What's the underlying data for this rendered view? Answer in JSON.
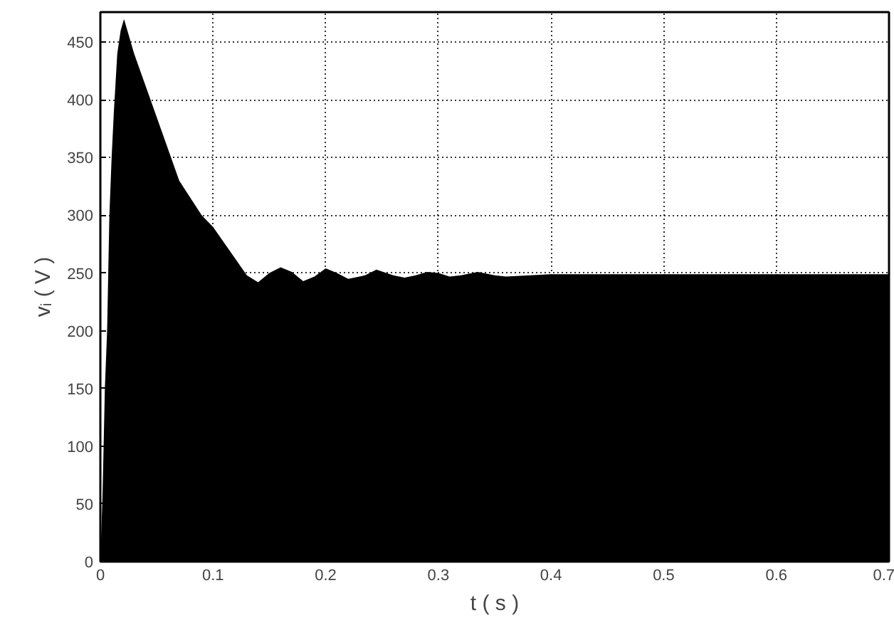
{
  "chart_data": {
    "type": "area",
    "xlabel": "t ( s )",
    "ylabel": "vᵢ ( V )",
    "series": [
      {
        "color": "#000000",
        "x": [
          0,
          0.002,
          0.004,
          0.006,
          0.008,
          0.01,
          0.012,
          0.015,
          0.018,
          0.021,
          0.03,
          0.05,
          0.07,
          0.09,
          0.1,
          0.12,
          0.13,
          0.14,
          0.15,
          0.16,
          0.17,
          0.18,
          0.19,
          0.2,
          0.21,
          0.22,
          0.235,
          0.245,
          0.26,
          0.27,
          0.28,
          0.29,
          0.3,
          0.31,
          0.32,
          0.335,
          0.35,
          0.36,
          0.4,
          0.45,
          0.5,
          0.55,
          0.6,
          0.65,
          0.7
        ],
        "values": [
          0,
          60,
          150,
          200,
          300,
          350,
          390,
          440,
          460,
          470,
          440,
          385,
          330,
          300,
          290,
          262,
          248,
          242,
          250,
          255,
          251,
          243,
          247,
          254,
          250,
          245,
          248,
          253,
          248,
          246,
          248,
          251,
          250,
          247,
          248,
          251,
          248,
          247,
          249,
          249,
          249,
          249,
          249,
          249,
          249
        ]
      }
    ],
    "xlim": [
      0,
      0.7
    ],
    "ylim": [
      0,
      476
    ],
    "xticks": [
      0,
      0.1,
      0.2,
      0.3,
      0.4,
      0.5,
      0.6,
      0.7
    ],
    "yticks": [
      0,
      50,
      100,
      150,
      200,
      250,
      300,
      350,
      400,
      450
    ],
    "grid": true,
    "line_style": "dotted"
  }
}
